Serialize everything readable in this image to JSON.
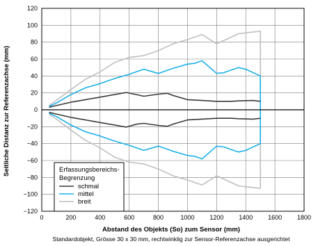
{
  "chart_data": {
    "type": "line",
    "xlabel": "Abstand des Objekts (So) zum Sensor (mm)",
    "ylabel": "Seitliche Distanz zur Referenzachse (mm)",
    "caption": "Standardobjekt, Grösse 30 x 30 mm, rechtwinklig zur Sensor-Referenzachse ausgerichtet",
    "xlim": [
      0,
      1800
    ],
    "ylim": [
      -120,
      120
    ],
    "x_ticks": [
      "0",
      "200",
      "400",
      "600",
      "800",
      "1000",
      "1200",
      "1400",
      "1600",
      "1800"
    ],
    "y_ticks": [
      "120",
      "100",
      "80",
      "60",
      "40",
      "20",
      "0",
      "−20",
      "−40",
      "−60",
      "−80",
      "−100",
      "−120"
    ],
    "grid": true,
    "legend": {
      "title_line1": "Erfassungsbereichs-",
      "title_line2": "Begrenzung",
      "placement": "bottom-left"
    },
    "series": [
      {
        "name": "schmal",
        "color": "#3a3a3a",
        "upper": [
          [
            50,
            3
          ],
          [
            100,
            5
          ],
          [
            200,
            9
          ],
          [
            300,
            12
          ],
          [
            400,
            15
          ],
          [
            500,
            18
          ],
          [
            580,
            20.5
          ],
          [
            650,
            18
          ],
          [
            700,
            16
          ],
          [
            800,
            18.5
          ],
          [
            860,
            19.5
          ],
          [
            900,
            17
          ],
          [
            1000,
            12
          ],
          [
            1100,
            11
          ],
          [
            1200,
            10
          ],
          [
            1300,
            10
          ],
          [
            1350,
            10.5
          ],
          [
            1450,
            11
          ],
          [
            1500,
            10
          ]
        ],
        "lower": [
          [
            50,
            -3
          ],
          [
            100,
            -5
          ],
          [
            200,
            -9
          ],
          [
            300,
            -12
          ],
          [
            400,
            -15
          ],
          [
            500,
            -18
          ],
          [
            580,
            -20.5
          ],
          [
            650,
            -17
          ],
          [
            700,
            -16
          ],
          [
            800,
            -18.5
          ],
          [
            860,
            -19.5
          ],
          [
            900,
            -17
          ],
          [
            1000,
            -12
          ],
          [
            1100,
            -11
          ],
          [
            1200,
            -10
          ],
          [
            1300,
            -10
          ],
          [
            1350,
            -10.5
          ],
          [
            1450,
            -11
          ],
          [
            1500,
            -10
          ]
        ]
      },
      {
        "name": "mittel",
        "color": "#1ab0e8",
        "upper": [
          [
            50,
            4
          ],
          [
            100,
            8
          ],
          [
            200,
            18
          ],
          [
            300,
            26
          ],
          [
            400,
            31
          ],
          [
            500,
            37
          ],
          [
            600,
            42
          ],
          [
            700,
            48
          ],
          [
            800,
            43
          ],
          [
            900,
            49
          ],
          [
            1000,
            54
          ],
          [
            1050,
            55
          ],
          [
            1100,
            58
          ],
          [
            1200,
            43
          ],
          [
            1250,
            44
          ],
          [
            1300,
            47
          ],
          [
            1350,
            50
          ],
          [
            1400,
            48
          ],
          [
            1500,
            40
          ],
          [
            1500,
            -40
          ]
        ],
        "lower": [
          [
            50,
            -4
          ],
          [
            100,
            -8
          ],
          [
            200,
            -18
          ],
          [
            300,
            -26
          ],
          [
            400,
            -31
          ],
          [
            500,
            -37
          ],
          [
            600,
            -42
          ],
          [
            700,
            -48
          ],
          [
            800,
            -43
          ],
          [
            900,
            -49
          ],
          [
            1000,
            -54
          ],
          [
            1050,
            -55
          ],
          [
            1100,
            -58
          ],
          [
            1200,
            -43
          ],
          [
            1250,
            -44
          ],
          [
            1300,
            -47
          ],
          [
            1350,
            -50
          ],
          [
            1400,
            -48
          ],
          [
            1500,
            -40
          ]
        ]
      },
      {
        "name": "breit",
        "color": "#bfbfbf",
        "upper": [
          [
            50,
            5
          ],
          [
            100,
            11
          ],
          [
            200,
            24
          ],
          [
            300,
            36
          ],
          [
            400,
            45
          ],
          [
            500,
            56
          ],
          [
            600,
            62
          ],
          [
            700,
            64
          ],
          [
            800,
            70
          ],
          [
            900,
            78
          ],
          [
            1000,
            83
          ],
          [
            1100,
            89
          ],
          [
            1200,
            78
          ],
          [
            1300,
            86
          ],
          [
            1350,
            90
          ],
          [
            1450,
            92
          ],
          [
            1500,
            93
          ],
          [
            1500,
            -93
          ]
        ],
        "lower": [
          [
            50,
            -5
          ],
          [
            100,
            -11
          ],
          [
            200,
            -24
          ],
          [
            300,
            -36
          ],
          [
            400,
            -45
          ],
          [
            500,
            -56
          ],
          [
            600,
            -62
          ],
          [
            700,
            -64
          ],
          [
            800,
            -70
          ],
          [
            900,
            -78
          ],
          [
            1000,
            -83
          ],
          [
            1100,
            -89
          ],
          [
            1200,
            -78
          ],
          [
            1300,
            -86
          ],
          [
            1350,
            -90
          ],
          [
            1450,
            -92
          ],
          [
            1500,
            -93
          ]
        ]
      }
    ]
  }
}
